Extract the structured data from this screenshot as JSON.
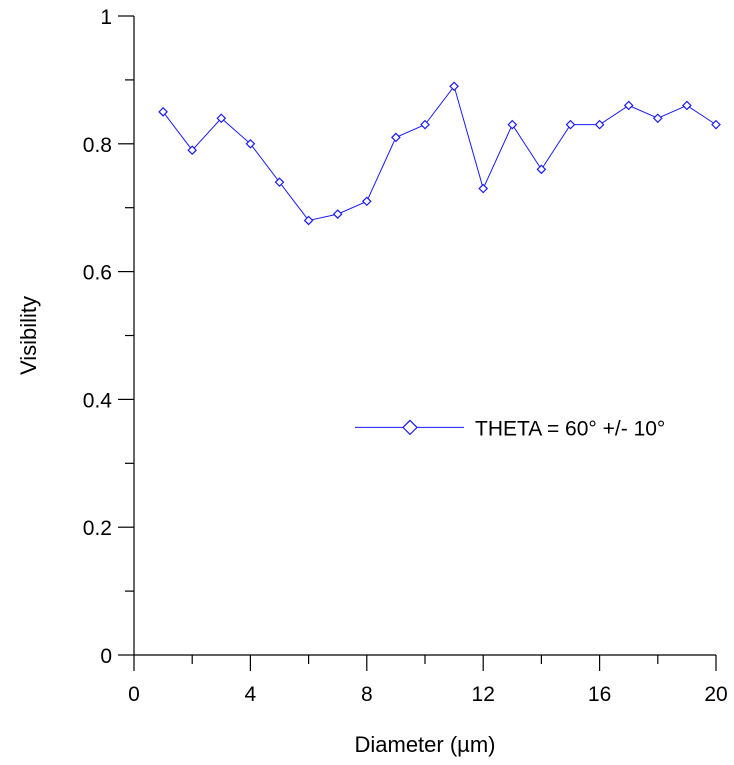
{
  "chart_data": {
    "type": "line",
    "title": "",
    "xlabel": "Diameter (µm)",
    "ylabel": "Visibility",
    "xlim": [
      0,
      20
    ],
    "ylim": [
      0,
      1
    ],
    "x_ticks": [
      0,
      4,
      8,
      12,
      16,
      20
    ],
    "x_tick_labels": [
      "0",
      "4",
      "8",
      "12",
      "16",
      "20"
    ],
    "x_minor_step": 2,
    "y_ticks": [
      0,
      0.2,
      0.4,
      0.6,
      0.8,
      1
    ],
    "y_tick_labels": [
      "0",
      "0.2",
      "0.4",
      "0.6",
      "0.8",
      "1"
    ],
    "y_minor_step": 0.1,
    "grid": false,
    "legend_position": "right-center",
    "series": [
      {
        "name": "THETA = 60° +/- 10°",
        "color": "#1a1aff",
        "marker": "diamond",
        "x": [
          1,
          2,
          3,
          4,
          5,
          6,
          7,
          8,
          9,
          10,
          11,
          12,
          13,
          14,
          15,
          16,
          17,
          18,
          19,
          20
        ],
        "values": [
          0.85,
          0.79,
          0.84,
          0.8,
          0.74,
          0.68,
          0.69,
          0.71,
          0.81,
          0.83,
          0.89,
          0.73,
          0.83,
          0.76,
          0.83,
          0.83,
          0.86,
          0.84,
          0.86,
          0.83
        ]
      }
    ]
  }
}
